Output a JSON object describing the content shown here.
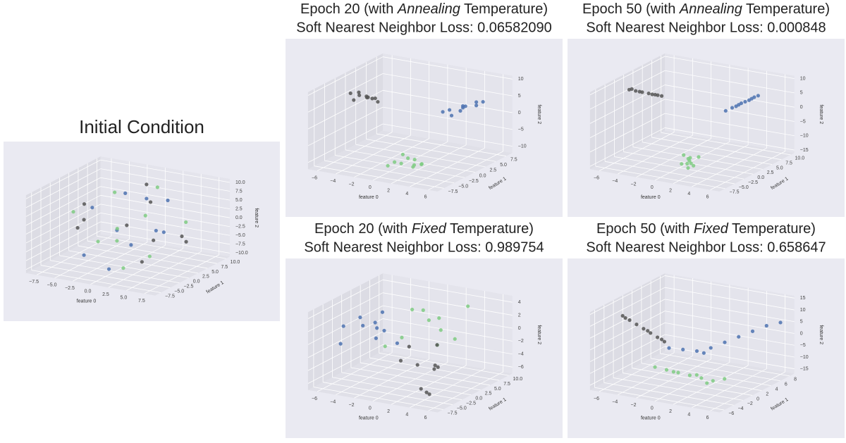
{
  "chart_data": [
    {
      "type": "scatter3d",
      "title": "Initial Condition",
      "xlabel": "feature 0",
      "ylabel": "feature 1",
      "zlabel": "feature 2",
      "xlim": [
        -9,
        9
      ],
      "ylim": [
        -9,
        11
      ],
      "zlim": [
        -11,
        11
      ],
      "xticks": [
        {
          "value": -7.5,
          "label": "−7.5"
        },
        {
          "value": -5,
          "label": "−5.0"
        },
        {
          "value": -2.5,
          "label": "−2.5"
        },
        {
          "value": 0,
          "label": "0.0"
        },
        2.5,
        {
          "value": 5,
          "label": "5.0"
        },
        7.5
      ],
      "yticks": [
        {
          "value": -7.5,
          "label": "−7.5"
        },
        {
          "value": -5,
          "label": "−5.0"
        },
        {
          "value": -2.5,
          "label": "−2.5"
        },
        {
          "value": 0,
          "label": "0.0"
        },
        2.5,
        {
          "value": 5,
          "label": "5.0"
        },
        7.5,
        {
          "value": 10,
          "label": "10.0"
        }
      ],
      "zticks": [
        {
          "value": -10,
          "label": "−10.0"
        },
        {
          "value": -7.5,
          "label": "−7.5"
        },
        {
          "value": -5,
          "label": "−5.0"
        },
        {
          "value": -2.5,
          "label": "−2.5"
        },
        {
          "value": 0,
          "label": "0.0"
        },
        2.5,
        {
          "value": 5,
          "label": "5.0"
        },
        7.5,
        {
          "value": 10,
          "label": "10.0"
        }
      ],
      "series": [
        {
          "color": "#4c72b0",
          "x": [
            -6,
            -3,
            0,
            2,
            5,
            -4,
            1,
            4,
            -1,
            6
          ],
          "y": [
            3,
            -5,
            6,
            -2,
            1,
            8,
            -6,
            4,
            0,
            -3
          ],
          "z": [
            2,
            -6,
            5,
            -3,
            0,
            4,
            -8,
            7,
            -1,
            3
          ]
        },
        {
          "color": "#7fcb82",
          "x": [
            -5,
            -2,
            1,
            3,
            6,
            -1,
            4,
            -6,
            2,
            0
          ],
          "y": [
            -4,
            2,
            7,
            -6,
            5,
            0,
            -2,
            9,
            3,
            -7
          ],
          "z": [
            5,
            -2,
            8,
            -7,
            1,
            -4,
            6,
            3,
            -9,
            0
          ]
        },
        {
          "color": "#555555",
          "x": [
            -7,
            -4,
            -1,
            2,
            4,
            7,
            0,
            -3,
            5,
            3
          ],
          "y": [
            1,
            -3,
            9,
            4,
            -7,
            2,
            6,
            -5,
            7,
            -1
          ],
          "z": [
            -3,
            7,
            2,
            -5,
            6,
            -1,
            9,
            4,
            -6,
            -8
          ]
        }
      ]
    },
    {
      "type": "scatter3d",
      "title": "Epoch 20 (with Annealing Temperature)",
      "title_emphasis": "Annealing",
      "subtitle": "Soft Nearest Neighbor Loss: 0.06582090",
      "xlabel": "feature 0",
      "ylabel": "feature 1",
      "zlabel": "feature 2",
      "xlim": [
        -7,
        7
      ],
      "ylim": [
        -9,
        9
      ],
      "zlim": [
        -12,
        11
      ],
      "xticks": [
        {
          "value": -6,
          "label": "−6"
        },
        {
          "value": -4,
          "label": "−4"
        },
        {
          "value": -2,
          "label": "−2"
        },
        0,
        2,
        4,
        6
      ],
      "yticks": [
        {
          "value": -7.5,
          "label": "−7.5"
        },
        {
          "value": -5,
          "label": "−5.0"
        },
        {
          "value": -2.5,
          "label": "−2.5"
        },
        {
          "value": 0,
          "label": "0.0"
        },
        2.5,
        {
          "value": 5,
          "label": "5.0"
        },
        7.5
      ],
      "zticks": [
        {
          "value": -10,
          "label": "−10"
        },
        {
          "value": -5,
          "label": "−5"
        },
        0,
        5,
        10
      ],
      "series": [
        {
          "color": "#4c72b0",
          "x": [
            2,
            3,
            4,
            2.5,
            3.5,
            1.5,
            4.5,
            3,
            2,
            4
          ],
          "y": [
            5,
            6,
            7,
            6.5,
            5.5,
            4.5,
            7.5,
            6,
            5.5,
            7
          ],
          "z": [
            1,
            2,
            3,
            0,
            2.5,
            0.5,
            3,
            1.5,
            -1,
            2
          ]
        },
        {
          "color": "#7fcb82",
          "x": [
            1,
            2,
            3,
            1.5,
            2.5,
            0.5,
            3.5,
            2,
            1,
            3
          ],
          "y": [
            -6,
            -5,
            -4,
            -5.5,
            -4.5,
            -6.5,
            -5,
            -3.5,
            -4,
            -6
          ],
          "z": [
            -8,
            -7,
            -9,
            -8.5,
            -7.5,
            -9,
            -8,
            -10,
            -7,
            -8.5
          ]
        },
        {
          "color": "#555555",
          "x": [
            -6,
            -5.5,
            -5,
            -4.5,
            -4,
            -5,
            -6,
            -4,
            -3.5,
            -5.2
          ],
          "y": [
            -1,
            0,
            1,
            -0.5,
            0.5,
            2,
            1,
            -1.5,
            0,
            -2
          ],
          "z": [
            6,
            5,
            4,
            5.5,
            4.5,
            3,
            5,
            6,
            4,
            5
          ]
        }
      ]
    },
    {
      "type": "scatter3d",
      "title": "Epoch 50 (with Annealing Temperature)",
      "title_emphasis": "Annealing",
      "subtitle": "Soft Nearest Neighbor Loss: 0.000848",
      "xlabel": "feature 0",
      "ylabel": "feature 1",
      "zlabel": "feature 2",
      "xlim": [
        -7,
        7
      ],
      "ylim": [
        -9,
        11
      ],
      "zlim": [
        -16,
        11
      ],
      "xticks": [
        {
          "value": -6,
          "label": "−6"
        },
        {
          "value": -4,
          "label": "−4"
        },
        {
          "value": -2,
          "label": "−2"
        },
        0,
        2,
        4,
        6
      ],
      "yticks": [
        {
          "value": -7.5,
          "label": "−7.5"
        },
        {
          "value": -5,
          "label": "−5.0"
        },
        {
          "value": -2.5,
          "label": "−2.5"
        },
        {
          "value": 0,
          "label": "0.0"
        },
        2.5,
        {
          "value": 5,
          "label": "5.0"
        },
        7.5,
        {
          "value": 10,
          "label": "10.0"
        }
      ],
      "zticks": [
        {
          "value": -15,
          "label": "−15"
        },
        {
          "value": -10,
          "label": "−10"
        },
        {
          "value": -5,
          "label": "−5"
        },
        0,
        5,
        10
      ],
      "series": [
        {
          "color": "#4c72b0",
          "x": [
            2,
            2.5,
            3,
            3.5,
            4,
            4.5,
            2.8,
            3.2,
            3.8,
            4.2
          ],
          "y": [
            5,
            5.5,
            6,
            6.5,
            7,
            7.5,
            5.8,
            6.2,
            6.8,
            7.2
          ],
          "z": [
            0,
            1,
            2,
            3,
            4,
            5,
            1.5,
            2.5,
            3.5,
            4.5
          ]
        },
        {
          "color": "#7fcb82",
          "x": [
            1.5,
            2,
            2.5,
            1.8,
            2.2,
            2.8,
            1.6,
            2.4,
            2,
            2.1
          ],
          "y": [
            -5,
            -4.5,
            -5.5,
            -4.8,
            -5.2,
            -4.2,
            -5.8,
            -4.6,
            -5,
            -5.3
          ],
          "z": [
            -9,
            -10,
            -11,
            -12,
            -10.5,
            -9.5,
            -11.5,
            -12.5,
            -10,
            -13
          ]
        },
        {
          "color": "#555555",
          "x": [
            -6,
            -5.5,
            -5,
            -4.5,
            -4,
            -3.5,
            -5.8,
            -4.2,
            -5.2,
            -3.8
          ],
          "y": [
            -1,
            -0.5,
            0,
            0.5,
            1,
            1.5,
            -0.8,
            0.7,
            -0.2,
            1.2
          ],
          "z": [
            7,
            6.5,
            6,
            5.5,
            5,
            4.5,
            7.2,
            5.2,
            6.2,
            4.8
          ]
        }
      ]
    },
    {
      "type": "scatter3d",
      "title": "Epoch 20 (with Fixed Temperature)",
      "title_emphasis": "Fixed",
      "subtitle": "Soft Nearest Neighbor Loss: 0.989754",
      "xlabel": "feature 0",
      "ylabel": "feature 1",
      "zlabel": "feature 2",
      "xlim": [
        -7,
        7
      ],
      "ylim": [
        -9,
        11
      ],
      "zlim": [
        -7,
        5
      ],
      "xticks": [
        {
          "value": -6,
          "label": "−6"
        },
        {
          "value": -4,
          "label": "−4"
        },
        {
          "value": -2,
          "label": "−2"
        },
        0,
        2,
        4,
        6
      ],
      "yticks": [
        {
          "value": -7.5,
          "label": "−7.5"
        },
        {
          "value": -5,
          "label": "−5.0"
        },
        {
          "value": -2.5,
          "label": "−2.5"
        },
        {
          "value": 0,
          "label": "0.0"
        },
        2.5,
        {
          "value": 5,
          "label": "5.0"
        },
        7.5,
        {
          "value": 10,
          "label": "10.0"
        }
      ],
      "zticks": [
        {
          "value": -6,
          "label": "−6"
        },
        {
          "value": -4,
          "label": "−4"
        },
        {
          "value": -2,
          "label": "−2"
        },
        0,
        2,
        4
      ],
      "series": [
        {
          "color": "#4c72b0",
          "x": [
            -6,
            -5,
            -4,
            -5.5,
            -3,
            -4.5,
            -2,
            -3.5,
            -5,
            -1
          ],
          "y": [
            -2,
            0,
            2,
            -4,
            1,
            3,
            -1,
            -3,
            4,
            0
          ],
          "z": [
            1,
            2,
            0,
            -1,
            3,
            -2,
            1,
            2,
            0,
            -1
          ]
        },
        {
          "color": "#7fcb82",
          "x": [
            -1,
            0,
            1,
            2,
            -0.5,
            1.5,
            0.5,
            2.5,
            -1.5,
            3
          ],
          "y": [
            4,
            6,
            2,
            8,
            0,
            5,
            7,
            3,
            -2,
            9
          ],
          "z": [
            3,
            1,
            4,
            -2,
            0,
            2,
            -3,
            1,
            -1,
            3
          ]
        },
        {
          "color": "#555555",
          "x": [
            1,
            2,
            3,
            4,
            2.5,
            3.5,
            4.5,
            1.5,
            5,
            3
          ],
          "y": [
            -4,
            -2,
            0,
            -6,
            2,
            -1,
            -5,
            -3,
            -7,
            1
          ],
          "z": [
            -2,
            -3,
            -4,
            -5,
            -1,
            -3,
            -6,
            0,
            -5,
            -4
          ]
        }
      ]
    },
    {
      "type": "scatter3d",
      "title": "Epoch 50 (with Fixed Temperature)",
      "title_emphasis": "Fixed",
      "subtitle": "Soft Nearest Neighbor Loss: 0.658647",
      "xlabel": "feature 0",
      "ylabel": "feature 1",
      "zlabel": "feature 2",
      "xlim": [
        -7,
        7
      ],
      "ylim": [
        -7,
        9
      ],
      "zlim": [
        -17,
        16
      ],
      "xticks": [
        {
          "value": -6,
          "label": "−6"
        },
        {
          "value": -4,
          "label": "−4"
        },
        {
          "value": -2,
          "label": "−2"
        },
        0,
        2,
        4,
        6
      ],
      "yticks": [
        {
          "value": -6,
          "label": "−6"
        },
        {
          "value": -4,
          "label": "−4"
        },
        {
          "value": -2,
          "label": "−2"
        },
        0,
        2,
        4,
        6,
        8
      ],
      "zticks": [
        {
          "value": -15,
          "label": "−15"
        },
        {
          "value": -10,
          "label": "−10"
        },
        {
          "value": -5,
          "label": "−5"
        },
        0,
        5,
        10,
        15
      ],
      "series": [
        {
          "color": "#4c72b0",
          "x": [
            -2,
            -1,
            0,
            1,
            2,
            3,
            4,
            5,
            6,
            0.5
          ],
          "y": [
            0,
            1,
            2,
            3,
            4,
            5,
            6,
            7,
            8,
            2.5
          ],
          "z": [
            -3,
            -4,
            -5,
            -4,
            -2,
            0,
            2,
            4,
            5,
            -6
          ]
        },
        {
          "color": "#7fcb82",
          "x": [
            -2,
            -1,
            0,
            1,
            2,
            3,
            4,
            -0.5,
            1.5,
            2.5
          ],
          "y": [
            -3,
            -2.5,
            -2,
            -1.5,
            -1,
            -0.5,
            0,
            -2,
            -1,
            -0.8
          ],
          "z": [
            -8,
            -9,
            -10,
            -11,
            -12,
            -13,
            -12,
            -10,
            -11,
            -14
          ]
        },
        {
          "color": "#555555",
          "x": [
            -6,
            -5.5,
            -5,
            -4.5,
            -4,
            -3.5,
            -3,
            -5.8,
            -4.2,
            -3.2
          ],
          "y": [
            -2,
            -1.5,
            -1,
            -0.5,
            0,
            0.5,
            1,
            -1.8,
            -0.2,
            0.8
          ],
          "z": [
            10,
            8,
            6,
            4,
            2,
            0,
            -2,
            9,
            3,
            -1
          ]
        }
      ]
    }
  ]
}
